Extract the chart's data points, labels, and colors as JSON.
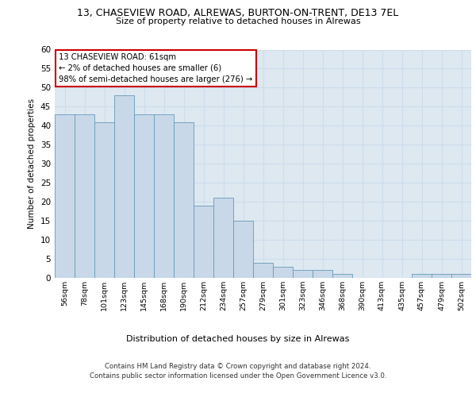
{
  "title_line1": "13, CHASEVIEW ROAD, ALREWAS, BURTON-ON-TRENT, DE13 7EL",
  "title_line2": "Size of property relative to detached houses in Alrewas",
  "xlabel": "Distribution of detached houses by size in Alrewas",
  "ylabel": "Number of detached properties",
  "categories": [
    "56sqm",
    "78sqm",
    "101sqm",
    "123sqm",
    "145sqm",
    "168sqm",
    "190sqm",
    "212sqm",
    "234sqm",
    "257sqm",
    "279sqm",
    "301sqm",
    "323sqm",
    "346sqm",
    "368sqm",
    "390sqm",
    "413sqm",
    "435sqm",
    "457sqm",
    "479sqm",
    "502sqm"
  ],
  "values": [
    43,
    43,
    41,
    48,
    43,
    43,
    41,
    19,
    21,
    15,
    4,
    3,
    2,
    2,
    1,
    0,
    0,
    0,
    1,
    1,
    1
  ],
  "bar_color": "#c8d8e8",
  "bar_edge_color": "#6699bb",
  "annotation_line1": "13 CHASEVIEW ROAD: 61sqm",
  "annotation_line2": "← 2% of detached houses are smaller (6)",
  "annotation_line3": "98% of semi-detached houses are larger (276) →",
  "annotation_box_color": "#ffffff",
  "annotation_box_edge_color": "#cc0000",
  "grid_color": "#ccddee",
  "background_color": "#dde8f0",
  "ylim": [
    0,
    60
  ],
  "yticks": [
    0,
    5,
    10,
    15,
    20,
    25,
    30,
    35,
    40,
    45,
    50,
    55,
    60
  ],
  "footer_line1": "Contains HM Land Registry data © Crown copyright and database right 2024.",
  "footer_line2": "Contains public sector information licensed under the Open Government Licence v3.0."
}
